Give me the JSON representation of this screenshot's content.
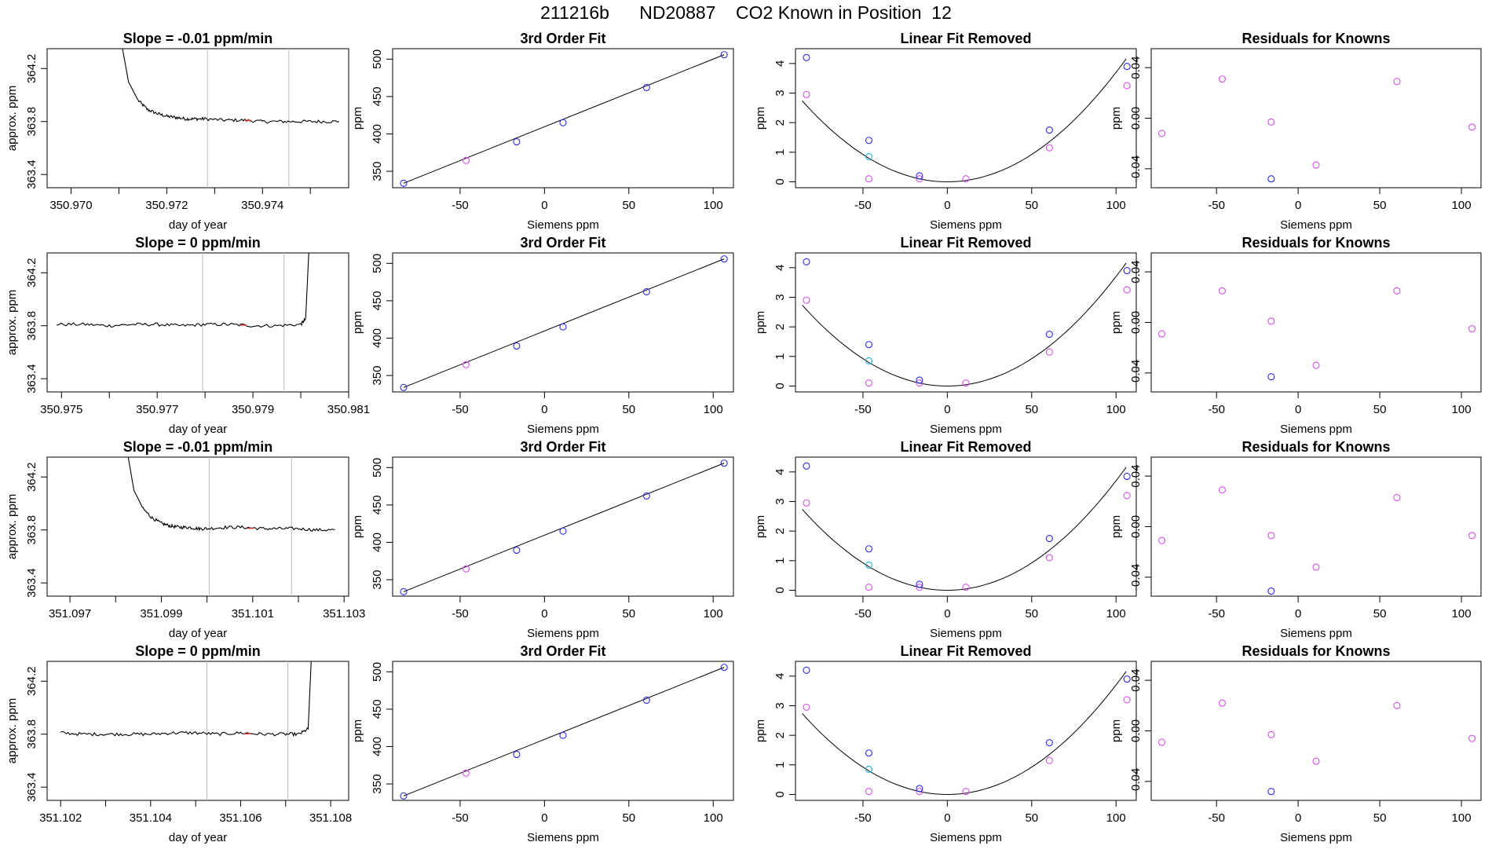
{
  "main_title": "211216b      ND20887    CO2 Known in Position  12",
  "colors": {
    "line": "#000000",
    "blue": "#2a2af0",
    "magenta": "#d44ee8",
    "cyan": "#1ab0d8",
    "red": "#e03030",
    "vline": "#b8b8b8"
  },
  "rows": [
    {
      "trace": {
        "title": "Slope =  -0.01  ppm/min",
        "xlabel": "day of year",
        "ylabel": "approx. ppm",
        "xlim": [
          350.9695,
          350.9758
        ],
        "ylim": [
          363.3,
          364.35
        ],
        "xticks": [
          350.97,
          350.971,
          350.972,
          350.973,
          350.974,
          350.975
        ],
        "xtick_labels": [
          "350.970",
          "",
          "350.972",
          "",
          "350.974",
          ""
        ],
        "yticks": [
          363.4,
          363.8,
          364.2
        ],
        "ytick_labels": [
          "363.4",
          "363.8",
          "364.2"
        ],
        "vlines": [
          350.97285,
          350.97455
        ],
        "x": [
          350.971,
          350.9712,
          350.9714,
          350.9716,
          350.9718,
          350.972,
          350.9722,
          350.9724,
          350.9726,
          350.9728,
          350.9732,
          350.9736,
          350.974,
          350.9744,
          350.9748,
          350.9752,
          350.9756
        ],
        "y": [
          364.5,
          364.1,
          363.96,
          363.89,
          363.86,
          363.84,
          363.83,
          363.82,
          363.82,
          363.82,
          363.81,
          363.81,
          363.8,
          363.8,
          363.8,
          363.8,
          363.8
        ],
        "noise": 0.012
      },
      "fit": {
        "title": "3rd Order Fit",
        "xlabel": "Siemens ppm",
        "ylabel": "ppm",
        "x": [
          -83.5,
          -46.5,
          -16.5,
          11,
          60.5,
          106.5
        ],
        "y": [
          334,
          364.5,
          389.5,
          415,
          462,
          506
        ]
      },
      "resid": {
        "title": "Linear Fit Removed",
        "xlabel": "Siemens ppm",
        "ylabel": "ppm",
        "blue_y": [
          4.2,
          1.4,
          0.2,
          0.1,
          1.75,
          3.9
        ],
        "magenta_y": [
          2.95,
          0.1,
          0.1,
          0.1,
          1.15,
          3.25
        ],
        "cyan_y": [
          null,
          0.85,
          null,
          null,
          null,
          null
        ],
        "curve_a": 0.00037
      },
      "known": {
        "title": "Residuals for Knowns",
        "xlabel": "Siemens ppm",
        "ylabel": "ppm",
        "y": [
          -0.012,
          0.031,
          -0.048,
          -0.003,
          -0.037,
          0.029,
          -0.007
        ],
        "x": [
          -83.5,
          -46.5,
          -16.5,
          -16.5,
          11,
          60.5,
          106.5
        ],
        "colors": [
          "magenta",
          "magenta",
          "blue",
          "magenta",
          "magenta",
          "magenta",
          "magenta"
        ]
      }
    },
    {
      "trace": {
        "title": "Slope =  0  ppm/min",
        "xlabel": "day of year",
        "ylabel": "approx. ppm",
        "xlim": [
          350.9747,
          350.981
        ],
        "ylim": [
          363.3,
          364.35
        ],
        "xticks": [
          350.975,
          350.976,
          350.977,
          350.978,
          350.979,
          350.98,
          350.981
        ],
        "xtick_labels": [
          "350.975",
          "",
          "350.977",
          "",
          "350.979",
          "",
          "350.981"
        ],
        "yticks": [
          363.4,
          363.8,
          364.2
        ],
        "ytick_labels": [
          "363.4",
          "363.8",
          "364.2"
        ],
        "vlines": [
          350.97795,
          350.97965
        ],
        "x": [
          350.9749,
          350.9755,
          350.976,
          350.9765,
          350.977,
          350.9775,
          350.978,
          350.9785,
          350.979,
          350.9795,
          350.98,
          350.9801,
          350.9802
        ],
        "y": [
          363.81,
          363.81,
          363.8,
          363.81,
          363.81,
          363.8,
          363.81,
          363.81,
          363.8,
          363.8,
          363.81,
          363.85,
          364.6
        ],
        "noise": 0.012
      },
      "fit": {
        "title": "3rd Order Fit",
        "xlabel": "Siemens ppm",
        "ylabel": "ppm",
        "x": [
          -83.5,
          -46.5,
          -16.5,
          11,
          60.5,
          106.5
        ],
        "y": [
          334,
          364.5,
          389.5,
          415,
          462,
          506
        ]
      },
      "resid": {
        "title": "Linear Fit Removed",
        "xlabel": "Siemens ppm",
        "ylabel": "ppm",
        "blue_y": [
          4.2,
          1.4,
          0.2,
          0.1,
          1.75,
          3.9
        ],
        "magenta_y": [
          2.9,
          0.1,
          0.1,
          0.1,
          1.15,
          3.25
        ],
        "cyan_y": [
          null,
          0.85,
          null,
          null,
          null,
          null
        ],
        "curve_a": 0.00037
      },
      "known": {
        "title": "Residuals for Knowns",
        "xlabel": "Siemens ppm",
        "ylabel": "ppm",
        "y": [
          -0.009,
          0.025,
          -0.043,
          0.001,
          -0.034,
          0.025,
          -0.005
        ],
        "x": [
          -83.5,
          -46.5,
          -16.5,
          -16.5,
          11,
          60.5,
          106.5
        ],
        "colors": [
          "magenta",
          "magenta",
          "blue",
          "magenta",
          "magenta",
          "magenta",
          "magenta"
        ]
      }
    },
    {
      "trace": {
        "title": "Slope =  -0.01  ppm/min",
        "xlabel": "day of year",
        "ylabel": "approx. ppm",
        "xlim": [
          351.0965,
          351.1031
        ],
        "ylim": [
          363.3,
          364.35
        ],
        "xticks": [
          351.097,
          351.098,
          351.099,
          351.1,
          351.101,
          351.102,
          351.103
        ],
        "xtick_labels": [
          "351.097",
          "",
          "351.099",
          "",
          "351.101",
          "",
          "351.103"
        ],
        "yticks": [
          363.4,
          363.8,
          364.2
        ],
        "ytick_labels": [
          "363.4",
          "363.8",
          "364.2"
        ],
        "vlines": [
          351.10005,
          351.10185
        ],
        "x": [
          351.0982,
          351.0984,
          351.0986,
          351.0988,
          351.099,
          351.0992,
          351.0994,
          351.0996,
          351.0998,
          351.1,
          351.1004,
          351.1008,
          351.1012,
          351.1016,
          351.102,
          351.1024,
          351.1028
        ],
        "y": [
          364.5,
          364.1,
          363.96,
          363.89,
          363.85,
          363.83,
          363.82,
          363.82,
          363.81,
          363.81,
          363.82,
          363.82,
          363.81,
          363.81,
          363.81,
          363.8,
          363.8
        ],
        "noise": 0.012
      },
      "fit": {
        "title": "3rd Order Fit",
        "xlabel": "Siemens ppm",
        "ylabel": "ppm",
        "x": [
          -83.5,
          -46.5,
          -16.5,
          11,
          60.5,
          106.5
        ],
        "y": [
          334,
          364.5,
          389.5,
          415,
          462,
          506
        ]
      },
      "resid": {
        "title": "Linear Fit Removed",
        "xlabel": "Siemens ppm",
        "ylabel": "ppm",
        "blue_y": [
          4.2,
          1.4,
          0.2,
          0.1,
          1.75,
          3.85
        ],
        "magenta_y": [
          2.95,
          0.1,
          0.1,
          0.1,
          1.1,
          3.2
        ],
        "cyan_y": [
          null,
          0.85,
          null,
          null,
          null,
          null
        ],
        "curve_a": 0.00037
      },
      "known": {
        "title": "Residuals for Knowns",
        "xlabel": "Siemens ppm",
        "ylabel": "ppm",
        "y": [
          -0.011,
          0.029,
          -0.051,
          -0.007,
          -0.032,
          0.023,
          -0.007
        ],
        "x": [
          -83.5,
          -46.5,
          -16.5,
          -16.5,
          11,
          60.5,
          106.5
        ],
        "colors": [
          "magenta",
          "magenta",
          "blue",
          "magenta",
          "magenta",
          "magenta",
          "magenta"
        ]
      }
    },
    {
      "trace": {
        "title": "Slope =  0  ppm/min",
        "xlabel": "day of year",
        "ylabel": "approx. ppm",
        "xlim": [
          351.1017,
          351.1084
        ],
        "ylim": [
          363.3,
          364.35
        ],
        "xticks": [
          351.102,
          351.103,
          351.104,
          351.105,
          351.106,
          351.107,
          351.108
        ],
        "xtick_labels": [
          "351.102",
          "",
          "351.104",
          "",
          "351.106",
          "",
          "351.108"
        ],
        "yticks": [
          363.4,
          363.8,
          364.2
        ],
        "ytick_labels": [
          "363.4",
          "363.8",
          "364.2"
        ],
        "vlines": [
          351.10525,
          351.10705
        ],
        "x": [
          351.102,
          351.1025,
          351.103,
          351.1035,
          351.104,
          351.1045,
          351.105,
          351.1055,
          351.106,
          351.1065,
          351.107,
          351.1073,
          351.1075,
          351.1076
        ],
        "y": [
          363.81,
          363.8,
          363.8,
          363.8,
          363.8,
          363.81,
          363.81,
          363.8,
          363.81,
          363.8,
          363.8,
          363.8,
          363.84,
          364.6
        ],
        "noise": 0.012
      },
      "fit": {
        "title": "3rd Order Fit",
        "xlabel": "Siemens ppm",
        "ylabel": "ppm",
        "x": [
          -83.5,
          -46.5,
          -16.5,
          11,
          60.5,
          106.5
        ],
        "y": [
          334,
          364.5,
          389.5,
          415,
          462,
          506
        ]
      },
      "resid": {
        "title": "Linear Fit Removed",
        "xlabel": "Siemens ppm",
        "ylabel": "ppm",
        "blue_y": [
          4.2,
          1.4,
          0.2,
          0.1,
          1.75,
          3.9
        ],
        "magenta_y": [
          2.95,
          0.1,
          0.1,
          0.1,
          1.15,
          3.2
        ],
        "cyan_y": [
          null,
          0.85,
          null,
          null,
          null,
          null
        ],
        "curve_a": 0.00037
      },
      "known": {
        "title": "Residuals for Knowns",
        "xlabel": "Siemens ppm",
        "ylabel": "ppm",
        "y": [
          -0.009,
          0.022,
          -0.048,
          -0.003,
          -0.024,
          0.02,
          -0.006
        ],
        "x": [
          -83.5,
          -46.5,
          -16.5,
          -16.5,
          11,
          60.5,
          106.5
        ],
        "colors": [
          "magenta",
          "magenta",
          "blue",
          "magenta",
          "magenta",
          "magenta",
          "magenta"
        ]
      }
    }
  ],
  "chart_data": [
    {
      "type": "line",
      "title": "Slope =  -0.01  ppm/min",
      "xlabel": "day of year",
      "ylabel": "approx. ppm",
      "xlim": [
        350.9695,
        350.9758
      ],
      "ylim": [
        363.3,
        364.35
      ]
    },
    {
      "type": "scatter",
      "title": "3rd Order Fit",
      "xlabel": "Siemens ppm",
      "ylabel": "ppm",
      "x": [
        -83.5,
        -46.5,
        -16.5,
        11,
        60.5,
        106.5
      ],
      "y": [
        334,
        364.5,
        389.5,
        415,
        462,
        506
      ],
      "xlim": [
        -90,
        112
      ],
      "ylim": [
        328,
        514
      ]
    },
    {
      "type": "scatter",
      "title": "Linear Fit Removed",
      "xlabel": "Siemens ppm",
      "ylabel": "ppm",
      "xlim": [
        -90,
        112
      ],
      "ylim": [
        -0.2,
        4.5
      ]
    },
    {
      "type": "scatter",
      "title": "Residuals for Knowns",
      "xlabel": "Siemens ppm",
      "ylabel": "ppm",
      "xlim": [
        -90,
        112
      ],
      "ylim": [
        -0.055,
        0.055
      ]
    }
  ]
}
